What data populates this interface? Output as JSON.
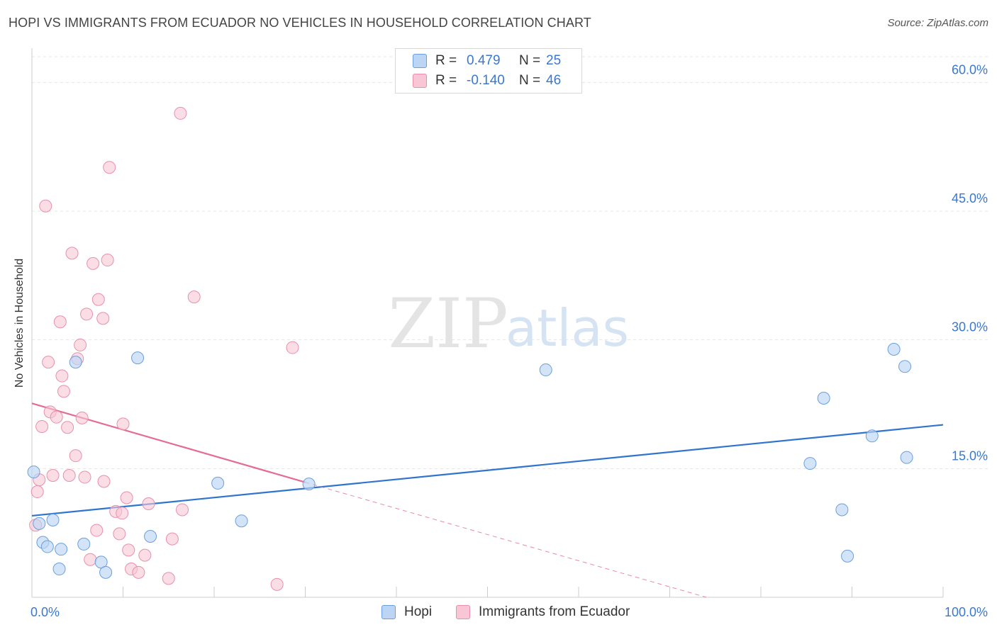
{
  "header": {
    "title": "HOPI VS IMMIGRANTS FROM ECUADOR NO VEHICLES IN HOUSEHOLD CORRELATION CHART",
    "source": "Source: ZipAtlas.com"
  },
  "legend": {
    "items": [
      {
        "r_label": "R =",
        "r_value": "0.479",
        "n_label": "N =",
        "n_value": "25"
      },
      {
        "r_label": "R =",
        "r_value": "-0.140",
        "n_label": "N =",
        "n_value": "46"
      }
    ]
  },
  "watermark": {
    "zip": "ZIP",
    "atlas": "atlas"
  },
  "colors": {
    "hopi_fill": "#bcd5f5",
    "hopi_stroke": "#6a9fde",
    "hopi_line": "#2f74cf",
    "ecu_fill": "#f8c6d4",
    "ecu_stroke": "#e890ac",
    "ecu_line": "#e46b93",
    "tick_label": "#3a78d0"
  },
  "chart_data": {
    "type": "scatter",
    "title": "HOPI VS IMMIGRANTS FROM ECUADOR NO VEHICLES IN HOUSEHOLD CORRELATION CHART",
    "xlabel": "",
    "ylabel": "No Vehicles in Household",
    "xlim": [
      0,
      100
    ],
    "ylim": [
      0,
      63
    ],
    "x_tick_labels": [
      "0.0%",
      "100.0%"
    ],
    "y_ticks": [
      15,
      30,
      45,
      60
    ],
    "y_tick_labels": [
      "15.0%",
      "30.0%",
      "45.0%",
      "60.0%"
    ],
    "series": [
      {
        "name": "Hopi",
        "points": [
          [
            0.2,
            14.6
          ],
          [
            0.8,
            8.6
          ],
          [
            1.2,
            6.4
          ],
          [
            1.7,
            5.9
          ],
          [
            2.3,
            9.0
          ],
          [
            3.0,
            3.3
          ],
          [
            3.2,
            5.6
          ],
          [
            4.8,
            27.4
          ],
          [
            5.7,
            6.2
          ],
          [
            7.6,
            4.1
          ],
          [
            8.1,
            2.9
          ],
          [
            11.6,
            27.9
          ],
          [
            13.0,
            7.1
          ],
          [
            20.4,
            13.3
          ],
          [
            23.0,
            8.9
          ],
          [
            30.4,
            13.2
          ],
          [
            56.4,
            26.5
          ],
          [
            85.4,
            15.6
          ],
          [
            86.9,
            23.2
          ],
          [
            88.9,
            10.2
          ],
          [
            89.5,
            4.8
          ],
          [
            92.2,
            18.8
          ],
          [
            94.6,
            28.9
          ],
          [
            95.8,
            26.9
          ],
          [
            96.0,
            16.3
          ]
        ],
        "trend": {
          "x": [
            0,
            100
          ],
          "y": [
            9.5,
            20.1
          ]
        }
      },
      {
        "name": "Immigrants from Ecuador",
        "points": [
          [
            0.4,
            8.4
          ],
          [
            0.6,
            12.3
          ],
          [
            0.8,
            13.7
          ],
          [
            1.1,
            19.9
          ],
          [
            1.5,
            45.6
          ],
          [
            1.8,
            27.4
          ],
          [
            2.0,
            21.6
          ],
          [
            2.3,
            14.2
          ],
          [
            2.7,
            21.0
          ],
          [
            3.1,
            32.1
          ],
          [
            3.3,
            25.8
          ],
          [
            3.5,
            24.0
          ],
          [
            3.9,
            19.8
          ],
          [
            4.1,
            14.2
          ],
          [
            4.4,
            40.1
          ],
          [
            4.8,
            16.5
          ],
          [
            5.0,
            27.8
          ],
          [
            5.3,
            29.4
          ],
          [
            5.5,
            20.9
          ],
          [
            5.8,
            14.0
          ],
          [
            6.0,
            33.0
          ],
          [
            6.4,
            4.4
          ],
          [
            6.7,
            38.9
          ],
          [
            7.1,
            7.8
          ],
          [
            7.3,
            34.7
          ],
          [
            7.8,
            32.5
          ],
          [
            7.9,
            13.5
          ],
          [
            8.3,
            39.3
          ],
          [
            8.5,
            50.1
          ],
          [
            9.2,
            10.0
          ],
          [
            9.6,
            7.4
          ],
          [
            9.9,
            9.8
          ],
          [
            10.0,
            20.2
          ],
          [
            10.4,
            11.6
          ],
          [
            10.6,
            5.5
          ],
          [
            10.9,
            3.3
          ],
          [
            11.7,
            2.9
          ],
          [
            12.4,
            4.9
          ],
          [
            12.8,
            10.9
          ],
          [
            15.0,
            2.2
          ],
          [
            15.4,
            6.8
          ],
          [
            16.3,
            56.4
          ],
          [
            16.5,
            10.2
          ],
          [
            17.8,
            35.0
          ],
          [
            26.9,
            1.5
          ],
          [
            28.6,
            29.1
          ]
        ],
        "trend": {
          "x": [
            0,
            30
          ],
          "y": [
            22.6,
            13.4
          ]
        },
        "trend_extension": {
          "x": [
            30,
            74
          ],
          "y": [
            13.4,
            0
          ]
        }
      }
    ]
  },
  "bottom_legend": [
    {
      "label": "Hopi"
    },
    {
      "label": "Immigrants from Ecuador"
    }
  ]
}
